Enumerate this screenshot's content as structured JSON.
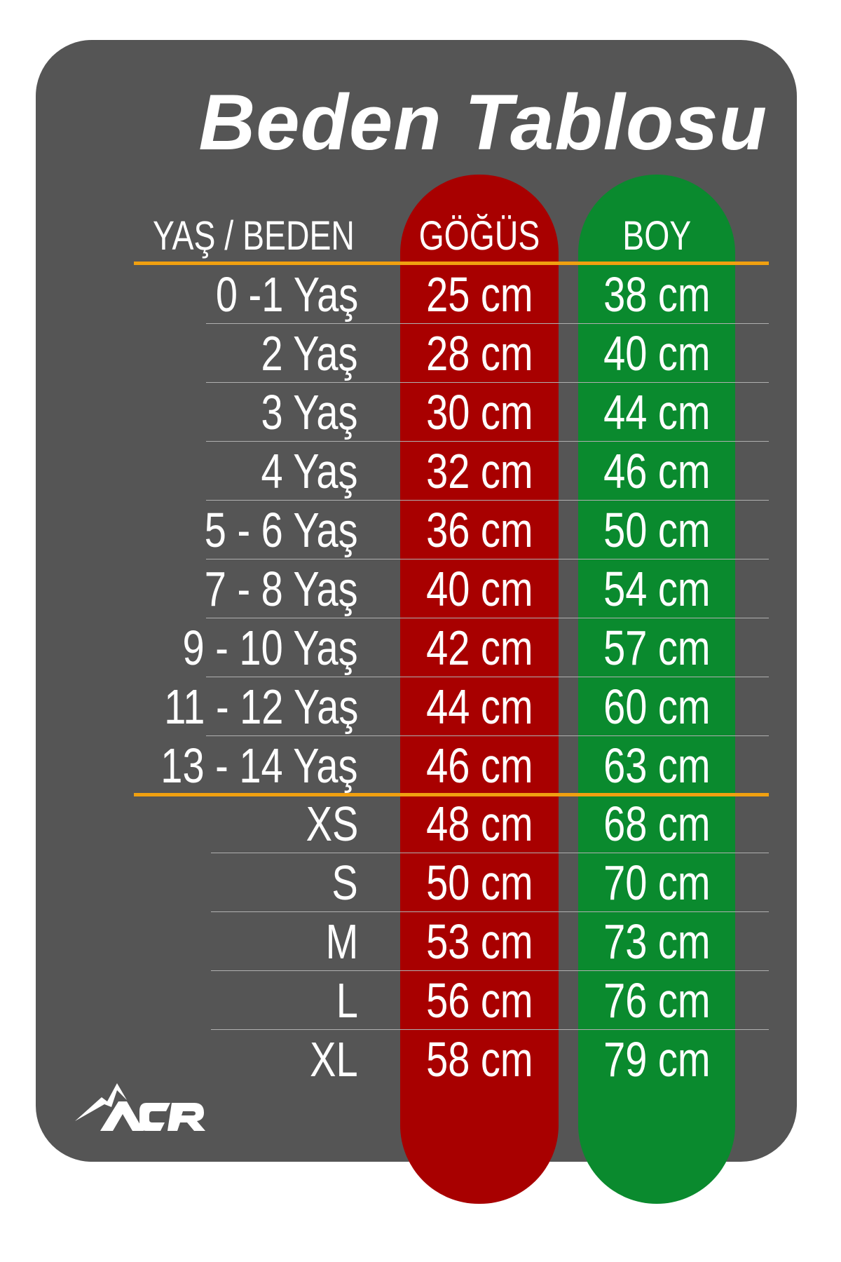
{
  "title": "Beden Tablosu",
  "headers": {
    "size": "YAŞ / BEDEN",
    "chest": "GÖĞÜS",
    "height": "BOY"
  },
  "colors": {
    "background": "#555555",
    "chest_column": "#a80000",
    "height_column": "#0a8a2e",
    "divider": "#f0a010"
  },
  "rows": [
    {
      "size": "0 -1 Yaş",
      "chest": "25 cm",
      "height": "38 cm"
    },
    {
      "size": "2 Yaş",
      "chest": "28 cm",
      "height": "40 cm"
    },
    {
      "size": "3 Yaş",
      "chest": "30 cm",
      "height": "44 cm"
    },
    {
      "size": "4 Yaş",
      "chest": "32 cm",
      "height": "46 cm"
    },
    {
      "size": "5 - 6 Yaş",
      "chest": "36 cm",
      "height": "50 cm"
    },
    {
      "size": "7 - 8 Yaş",
      "chest": "40 cm",
      "height": "54 cm"
    },
    {
      "size": "9 - 10 Yaş",
      "chest": "42 cm",
      "height": "57 cm"
    },
    {
      "size": "11 - 12 Yaş",
      "chest": "44 cm",
      "height": "60 cm"
    },
    {
      "size": "13 - 14 Yaş",
      "chest": "46 cm",
      "height": "63 cm"
    },
    {
      "size": "XS",
      "chest": "48 cm",
      "height": "68 cm"
    },
    {
      "size": "S",
      "chest": "50 cm",
      "height": "70 cm"
    },
    {
      "size": "M",
      "chest": "53 cm",
      "height": "73 cm"
    },
    {
      "size": "L",
      "chest": "56 cm",
      "height": "76 cm"
    },
    {
      "size": "XL",
      "chest": "58 cm",
      "height": "79 cm"
    }
  ],
  "logo": {
    "text": "ACR",
    "icon": "mountain-icon"
  }
}
